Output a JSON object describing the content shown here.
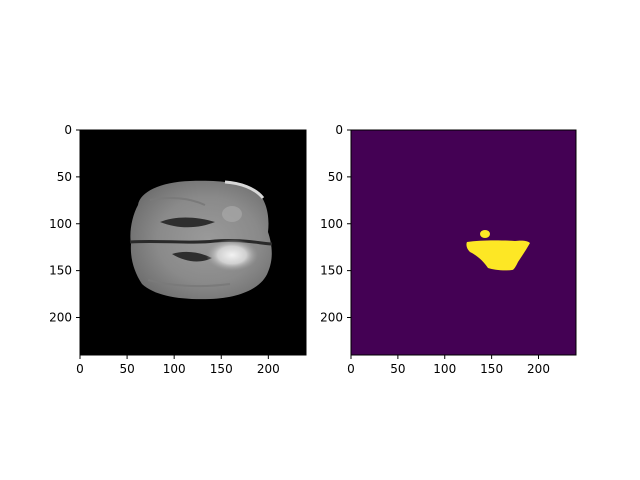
{
  "figure": {
    "panels": [
      {
        "name": "mri-image",
        "x_ticks": [
          "0",
          "50",
          "100",
          "150",
          "200"
        ],
        "y_ticks": [
          "0",
          "50",
          "100",
          "150",
          "200"
        ],
        "x_range": [
          0,
          240
        ],
        "y_range": [
          0,
          240
        ],
        "colormap": "gray",
        "background": "#000000"
      },
      {
        "name": "segmentation-mask",
        "x_ticks": [
          "0",
          "50",
          "100",
          "150",
          "200"
        ],
        "y_ticks": [
          "0",
          "50",
          "100",
          "150",
          "200"
        ],
        "x_range": [
          0,
          240
        ],
        "y_range": [
          0,
          240
        ],
        "colormap": "viridis",
        "background": "#440154",
        "mask_color": "#fde725"
      }
    ]
  },
  "colors": {
    "axis": "#000000",
    "figure_bg": "#ffffff"
  }
}
